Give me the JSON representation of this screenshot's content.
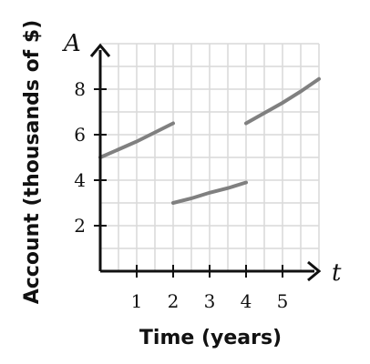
{
  "chart_data": {
    "type": "line",
    "title": "",
    "xlabel": "Time (years)",
    "ylabel": "Account (thousands of $)",
    "x_var": "t",
    "y_var": "A",
    "xlim": [
      0,
      6
    ],
    "ylim": [
      0,
      10
    ],
    "x_ticks": [
      1,
      2,
      3,
      4,
      5
    ],
    "x_tick_labels": [
      "1",
      "2",
      "3",
      "4",
      "5"
    ],
    "y_ticks": [
      2,
      4,
      6,
      8
    ],
    "y_tick_labels": [
      "2",
      "4",
      "6",
      "8"
    ],
    "grid": true,
    "grid_step_x": 0.5,
    "grid_step_y": 1,
    "line_color": "#808080",
    "series": [
      {
        "segments": [
          {
            "x": [
              0,
              0.5,
              1,
              1.5,
              2
            ],
            "y": [
              5.0,
              5.35,
              5.7,
              6.1,
              6.5
            ]
          },
          {
            "x": [
              2,
              2.5,
              3,
              3.5,
              4
            ],
            "y": [
              3.0,
              3.2,
              3.45,
              3.65,
              3.9
            ]
          },
          {
            "x": [
              4,
              4.5,
              5,
              5.5,
              6
            ],
            "y": [
              6.5,
              6.95,
              7.4,
              7.9,
              8.45
            ]
          }
        ]
      }
    ]
  }
}
